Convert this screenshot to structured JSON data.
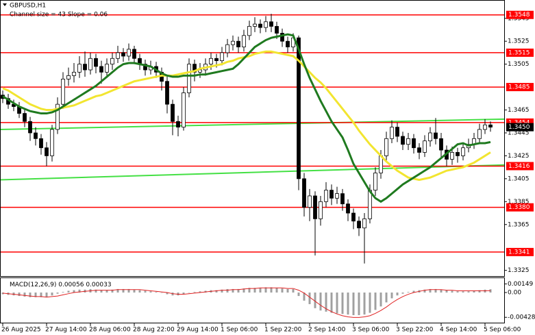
{
  "chart_data": [
    {
      "type": "candlestick",
      "title": "GBPUSD,H1",
      "subtitle": "Channel size = 43 Slope = 0.06",
      "categories": [
        "26 Aug 2025",
        null,
        null,
        null,
        null,
        null,
        null,
        null,
        "27 Aug 14:00",
        null,
        null,
        null,
        null,
        null,
        null,
        null,
        "28 Aug 06:00",
        null,
        null,
        null,
        null,
        null,
        null,
        null,
        "28 Aug 22:00",
        null,
        null,
        null,
        null,
        null,
        null,
        null,
        "29 Aug 14:00",
        null,
        null,
        null,
        null,
        null,
        null,
        null,
        "1 Sep 06:00",
        null,
        null,
        null,
        null,
        null,
        null,
        null,
        "1 Sep 22:00",
        null,
        null,
        null,
        null,
        null,
        null,
        null,
        "2 Sep 14:00",
        null,
        null,
        null,
        null,
        null,
        null,
        null,
        "3 Sep 06:00",
        null,
        null,
        null,
        null,
        null,
        null,
        null,
        "3 Sep 22:00",
        null,
        null,
        null,
        null,
        null,
        null,
        null,
        "4 Sep 14:00",
        null,
        null,
        null,
        null,
        null,
        null,
        null,
        "5 Sep 06:00",
        null
      ],
      "open": [
        1.3478,
        1.3475,
        1.347,
        1.3468,
        1.3462,
        1.3455,
        1.3445,
        1.344,
        1.3432,
        1.3425,
        1.3448,
        1.347,
        1.3492,
        1.3495,
        1.3498,
        1.3505,
        1.35,
        1.351,
        1.3503,
        1.3498,
        1.3505,
        1.351,
        1.3515,
        1.3512,
        1.3518,
        1.351,
        1.3505,
        1.35,
        1.3503,
        1.3498,
        1.349,
        1.347,
        1.3455,
        1.345,
        1.348,
        1.3505,
        1.3498,
        1.35,
        1.3505,
        1.351,
        1.3508,
        1.3515,
        1.3522,
        1.3525,
        1.352,
        1.353,
        1.3538,
        1.354,
        1.3537,
        1.3542,
        1.3538,
        1.3532,
        1.3525,
        1.352,
        1.3528,
        1.3405,
        1.338,
        1.339,
        1.337,
        1.3385,
        1.3395,
        1.3388,
        1.3392,
        1.3383,
        1.3375,
        1.3368,
        1.3362,
        1.337,
        1.3395,
        1.341,
        1.3425,
        1.344,
        1.345,
        1.3442,
        1.3435,
        1.344,
        1.3432,
        1.3428,
        1.3438,
        1.3445,
        1.344,
        1.343,
        1.3422,
        1.3428,
        1.3425,
        1.3432,
        1.3435,
        1.344,
        1.3448,
        1.3452
      ],
      "high": [
        1.3482,
        1.3479,
        1.3474,
        1.3472,
        1.3466,
        1.3459,
        1.345,
        1.3444,
        1.3437,
        1.3452,
        1.3476,
        1.3498,
        1.3502,
        1.3506,
        1.3512,
        1.3516,
        1.3515,
        1.3514,
        1.3508,
        1.351,
        1.3515,
        1.3521,
        1.3519,
        1.3523,
        1.3521,
        1.3514,
        1.3509,
        1.3508,
        1.3507,
        1.3502,
        1.3494,
        1.3474,
        1.346,
        1.3485,
        1.351,
        1.3509,
        1.3506,
        1.351,
        1.3515,
        1.3514,
        1.352,
        1.3527,
        1.353,
        1.3529,
        1.3535,
        1.3543,
        1.3546,
        1.3544,
        1.3547,
        1.3549,
        1.3542,
        1.3536,
        1.3529,
        1.3532,
        1.353,
        1.341,
        1.3396,
        1.3394,
        1.339,
        1.3402,
        1.34,
        1.3398,
        1.3396,
        1.3387,
        1.3379,
        1.3372,
        1.3375,
        1.34,
        1.3415,
        1.343,
        1.3446,
        1.3456,
        1.3454,
        1.3446,
        1.3445,
        1.3444,
        1.3436,
        1.3443,
        1.345,
        1.3458,
        1.3445,
        1.3434,
        1.3433,
        1.3432,
        1.3436,
        1.344,
        1.3445,
        1.3453,
        1.3457,
        1.3455
      ],
      "low": [
        1.3471,
        1.3466,
        1.3464,
        1.3458,
        1.345,
        1.3438,
        1.3434,
        1.3426,
        1.3416,
        1.342,
        1.3444,
        1.3466,
        1.3486,
        1.3489,
        1.3493,
        1.3494,
        1.3496,
        1.3497,
        1.3488,
        1.3493,
        1.35,
        1.3506,
        1.3507,
        1.3508,
        1.3505,
        1.35,
        1.3495,
        1.3496,
        1.3493,
        1.3482,
        1.3462,
        1.3443,
        1.3442,
        1.3447,
        1.3476,
        1.349,
        1.3493,
        1.3495,
        1.35,
        1.3502,
        1.3504,
        1.3511,
        1.3517,
        1.3515,
        1.3516,
        1.3526,
        1.3533,
        1.3532,
        1.3533,
        1.3533,
        1.3527,
        1.352,
        1.3515,
        1.3516,
        1.3395,
        1.3372,
        1.3368,
        1.3338,
        1.3364,
        1.338,
        1.3382,
        1.3383,
        1.3377,
        1.3368,
        1.3361,
        1.3355,
        1.3331,
        1.3366,
        1.339,
        1.3405,
        1.342,
        1.3436,
        1.3437,
        1.343,
        1.343,
        1.3427,
        1.3422,
        1.3424,
        1.3433,
        1.3435,
        1.3424,
        1.3416,
        1.3417,
        1.3419,
        1.3421,
        1.3428,
        1.3431,
        1.3436,
        1.3444,
        1.3446
      ],
      "close": [
        1.3475,
        1.347,
        1.3468,
        1.3462,
        1.3455,
        1.3445,
        1.344,
        1.3432,
        1.3425,
        1.3448,
        1.347,
        1.3492,
        1.3495,
        1.3498,
        1.3505,
        1.35,
        1.351,
        1.3503,
        1.3498,
        1.3505,
        1.351,
        1.3515,
        1.3512,
        1.3518,
        1.351,
        1.3505,
        1.35,
        1.3503,
        1.3498,
        1.349,
        1.347,
        1.3455,
        1.345,
        1.348,
        1.3505,
        1.3498,
        1.35,
        1.3505,
        1.351,
        1.3508,
        1.3515,
        1.3522,
        1.3525,
        1.352,
        1.353,
        1.3538,
        1.354,
        1.3537,
        1.3542,
        1.3538,
        1.3532,
        1.3525,
        1.352,
        1.3528,
        1.3405,
        1.338,
        1.339,
        1.337,
        1.3385,
        1.3395,
        1.3388,
        1.3392,
        1.3383,
        1.3375,
        1.3368,
        1.3362,
        1.337,
        1.3395,
        1.341,
        1.3425,
        1.344,
        1.345,
        1.3442,
        1.3435,
        1.344,
        1.3432,
        1.3428,
        1.3438,
        1.3445,
        1.344,
        1.343,
        1.3422,
        1.3428,
        1.3425,
        1.3432,
        1.3435,
        1.344,
        1.3448,
        1.3452,
        1.345
      ],
      "lines": [
        {
          "color": "#f2e530",
          "values": [
            1.3484,
            1.3482,
            1.3479,
            1.3476,
            1.3473,
            1.347,
            1.3468,
            1.3466,
            1.3465,
            1.3465,
            1.3466,
            1.3467,
            1.3468,
            1.3469,
            1.3471,
            1.3473,
            1.3475,
            1.3477,
            1.3478,
            1.348,
            1.3482,
            1.3484,
            1.3486,
            1.3488,
            1.349,
            1.3491,
            1.3492,
            1.3493,
            1.3494,
            1.3495,
            1.3495,
            1.3495,
            1.3496,
            1.3497,
            1.3498,
            1.3499,
            1.3501,
            1.3502,
            1.3503,
            1.3504,
            1.3505,
            1.3507,
            1.3508,
            1.351,
            1.3511,
            1.3512,
            1.3514,
            1.3515,
            1.3516,
            1.3516,
            1.3515,
            1.3514,
            1.3513,
            1.3512,
            1.3508,
            1.3503,
            1.3498,
            1.3493,
            1.3489,
            1.3484,
            1.3478,
            1.3472,
            1.3466,
            1.346,
            1.3454,
            1.3447,
            1.3441,
            1.3435,
            1.343,
            1.3425,
            1.342,
            1.3416,
            1.3412,
            1.3409,
            1.3406,
            1.3405,
            1.3404,
            1.3405,
            1.3406,
            1.3408,
            1.341,
            1.3412,
            1.3413,
            1.3414,
            1.3415,
            1.3417,
            1.3419,
            1.3422,
            1.3425,
            1.3428
          ]
        },
        {
          "color": "#1f7a1f",
          "values": [
            1.3477,
            1.3474,
            1.3471,
            1.3468,
            1.3466,
            1.3464,
            1.3463,
            1.3462,
            1.3462,
            1.3463,
            1.3465,
            1.3468,
            1.3471,
            1.3474,
            1.3477,
            1.348,
            1.3483,
            1.3486,
            1.349,
            1.3494,
            1.3498,
            1.3502,
            1.3505,
            1.3506,
            1.3506,
            1.3505,
            1.3504,
            1.3503,
            1.35,
            1.3497,
            1.3495,
            1.3494,
            1.3494,
            1.3495,
            1.3495,
            1.3495,
            1.3496,
            1.3496,
            1.3497,
            1.3498,
            1.3499,
            1.35,
            1.3501,
            1.3505,
            1.351,
            1.3515,
            1.352,
            1.3523,
            1.3526,
            1.3528,
            1.3529,
            1.353,
            1.3531,
            1.353,
            1.3518,
            1.3505,
            1.3493,
            1.3483,
            1.3473,
            1.3464,
            1.3455,
            1.3448,
            1.3441,
            1.343,
            1.3418,
            1.341,
            1.3402,
            1.3394,
            1.3388,
            1.3385,
            1.3388,
            1.3392,
            1.3396,
            1.34,
            1.3403,
            1.3406,
            1.3409,
            1.3412,
            1.3415,
            1.3419,
            1.3423,
            1.3427,
            1.3431,
            1.3435,
            1.3436,
            1.3434,
            1.3435,
            1.3436,
            1.3436,
            1.3437
          ]
        }
      ],
      "trend_lines": [
        {
          "color": "#44e044",
          "values": [
            1.3448,
            1.3457
          ]
        },
        {
          "color": "#44e044",
          "values": [
            1.3404,
            1.3417
          ]
        }
      ],
      "levels": [
        1.3548,
        1.3515,
        1.3485,
        1.3454,
        1.3416,
        {
          "value": 1.338,
          "label": "1.3380"
        },
        1.3341
      ],
      "level_color": "#ff0000",
      "last_price": {
        "value": 1.345,
        "label": "1.3450"
      },
      "ylim": [
        1.332,
        1.3561
      ],
      "yticks": [
        1.3545,
        1.3525,
        1.3505,
        1.3465,
        1.3445,
        1.3425,
        1.3405,
        1.3385,
        1.3365,
        1.3325
      ]
    },
    {
      "type": "macd",
      "title": "MACD(12,26,9)",
      "value": 0.00056,
      "signal_value": 0.00033,
      "histogram": {
        "color": "#a0a0a0",
        "values": [
          -0.0003,
          -0.0004,
          -0.0005,
          -0.0006,
          -0.0007,
          -0.0008,
          -0.0008,
          -0.0008,
          -0.0008,
          -0.0005,
          -0.0002,
          0.0001,
          0.0003,
          0.0004,
          0.0005,
          0.0005,
          0.0006,
          0.0005,
          0.0004,
          0.0004,
          0.0005,
          0.0006,
          0.0006,
          0.0006,
          0.0005,
          0.0004,
          0.0003,
          0.0002,
          0.0001,
          0,
          -0.0003,
          -0.0005,
          -0.0005,
          -0.0003,
          0,
          0.0001,
          0.0002,
          0.0003,
          0.0004,
          0.0004,
          0.0005,
          0.0006,
          0.0006,
          0.0006,
          0.0007,
          0.0008,
          0.0008,
          0.0008,
          0.0009,
          0.0009,
          0.0008,
          0.0007,
          0.0006,
          0.0006,
          -0.0006,
          -0.0014,
          -0.002,
          -0.0027,
          -0.0031,
          -0.0033,
          -0.0035,
          -0.0036,
          -0.0037,
          -0.0038,
          -0.0039,
          -0.0039,
          -0.0038,
          -0.0035,
          -0.003,
          -0.0024,
          -0.0017,
          -0.001,
          -0.0005,
          -0.0002,
          0.0001,
          0.0003,
          0.0004,
          0.0005,
          0.0006,
          0.0006,
          0.0005,
          0.0004,
          0.0003,
          0.0002,
          0.0002,
          0.0002,
          0.0003,
          0.0004,
          0.0005,
          0.00056
        ]
      },
      "signal": {
        "color": "#e02020",
        "values": [
          -0.0001,
          -0.0002,
          -0.0003,
          -0.0004,
          -0.0005,
          -0.0006,
          -0.0007,
          -0.0007,
          -0.0008,
          -0.0007,
          -0.0006,
          -0.0004,
          -0.0002,
          0,
          0.0001,
          0.0002,
          0.0003,
          0.0004,
          0.0004,
          0.0004,
          0.0004,
          0.0005,
          0.0005,
          0.0005,
          0.0005,
          0.0005,
          0.0004,
          0.0003,
          0.0002,
          0.0001,
          0,
          -0.0002,
          -0.0003,
          -0.0003,
          -0.0002,
          -0.0001,
          0,
          0.0001,
          0.0002,
          0.0003,
          0.0004,
          0.0004,
          0.0005,
          0.0005,
          0.0006,
          0.0007,
          0.0007,
          0.0008,
          0.0008,
          0.0008,
          0.0008,
          0.0008,
          0.0007,
          0.0007,
          0.0004,
          -0.0001,
          -0.0008,
          -0.0015,
          -0.0022,
          -0.0028,
          -0.0033,
          -0.0037,
          -0.004,
          -0.0042,
          -0.0043,
          -0.0043,
          -0.0042,
          -0.004,
          -0.0036,
          -0.0031,
          -0.0025,
          -0.0018,
          -0.0012,
          -0.0007,
          -0.0003,
          0,
          0.0002,
          0.0004,
          0.0005,
          0.0005,
          0.0005,
          0.0004,
          0.0004,
          0.0003,
          0.0003,
          0.0003,
          0.0003,
          0.0003,
          0.0003,
          0.00033
        ]
      },
      "ylim": [
        -0.0052,
        0.0026
      ],
      "yticks": [
        0.00149,
        {
          "value": 0,
          "label": "0.00"
        },
        -0.00428
      ]
    }
  ]
}
